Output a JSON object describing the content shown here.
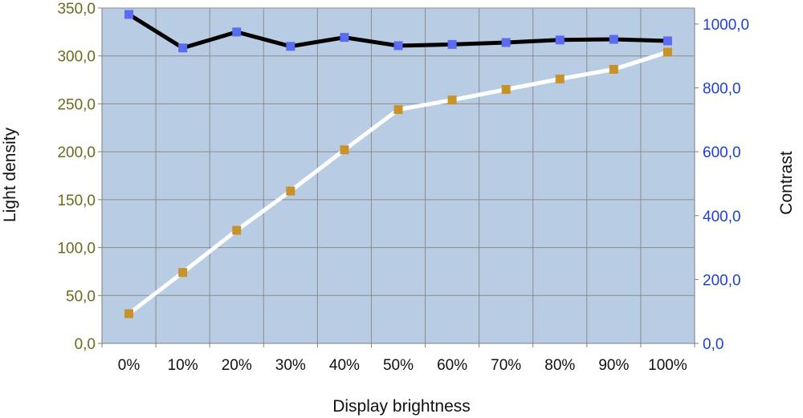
{
  "chart_data": {
    "type": "line",
    "xlabel": "Display brightness",
    "ylabel_left": "Light density",
    "ylabel_right": "Contrast",
    "categories": [
      "0%",
      "10%",
      "20%",
      "30%",
      "40%",
      "50%",
      "60%",
      "70%",
      "80%",
      "90%",
      "100%"
    ],
    "y_left": {
      "lim": [
        0,
        350
      ],
      "ticks": [
        "0,0",
        "50,0",
        "100,0",
        "150,0",
        "200,0",
        "250,0",
        "300,0",
        "350,0"
      ],
      "tick_values": [
        0,
        50,
        100,
        150,
        200,
        250,
        300,
        350
      ]
    },
    "y_right": {
      "lim": [
        0,
        1050
      ],
      "ticks": [
        "0,0",
        "200,0",
        "400,0",
        "600,0",
        "800,0",
        "1000,0"
      ],
      "tick_values": [
        0,
        200,
        400,
        600,
        800,
        1000
      ]
    },
    "series": [
      {
        "axis": "left",
        "line_color": "#ffffff",
        "marker_color": "#c8922a",
        "values": [
          31,
          74,
          118,
          159,
          202,
          244,
          254,
          265,
          276,
          286,
          304
        ]
      },
      {
        "axis": "right",
        "line_color": "#000000",
        "marker_color": "#5a6cf0",
        "values": [
          1030,
          925,
          975,
          930,
          958,
          932,
          936,
          942,
          950,
          952,
          947
        ]
      }
    ],
    "grid": true,
    "plot_background": "#b8cce4",
    "left_tick_color": "#6b6b1f",
    "right_tick_color": "#1f3fd0"
  }
}
